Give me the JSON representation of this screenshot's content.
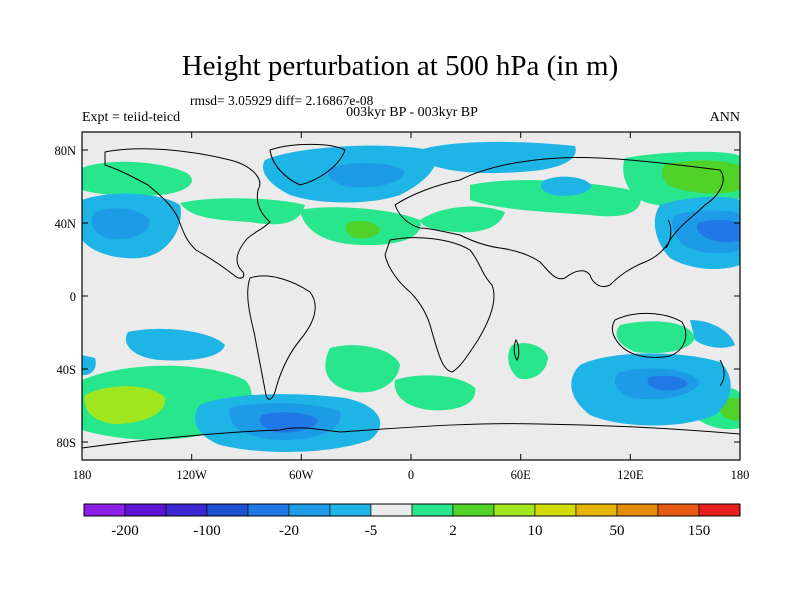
{
  "header": {
    "title": "Height perturbation at 500 hPa (in m)",
    "stats": "rmsd= 3.05929 diff= 2.16867e-08",
    "period": "003kyr BP - 003kyr BP",
    "experiment": "Expt = teiid-teicd",
    "season": "ANN"
  },
  "axes": {
    "lat_ticks": [
      "80N",
      "40N",
      "0",
      "40S",
      "80S"
    ],
    "lon_ticks": [
      "180",
      "120W",
      "60W",
      "0",
      "60E",
      "120E",
      "180"
    ]
  },
  "colorbar": {
    "colors": [
      "#8c1ee6",
      "#5a14d2",
      "#3c28d2",
      "#1e50d2",
      "#2078e6",
      "#1e9be6",
      "#1eb4e6",
      "#ebebeb",
      "#28e68c",
      "#50d228",
      "#a0e61e",
      "#d2dc00",
      "#e6b400",
      "#e68c00",
      "#e65a14",
      "#e61e1e"
    ],
    "labels": [
      "-200",
      "-100",
      "-20",
      "-5",
      "2",
      "10",
      "50",
      "150"
    ]
  },
  "map_colors": {
    "background": "#ebebeb",
    "level_plus_1": "#28e68c",
    "level_plus_2": "#50d228",
    "level_plus_3": "#a0e61e",
    "level_minus_1": "#1eb4e6",
    "level_minus_2": "#1e9be6",
    "level_minus_3": "#2078e6"
  }
}
